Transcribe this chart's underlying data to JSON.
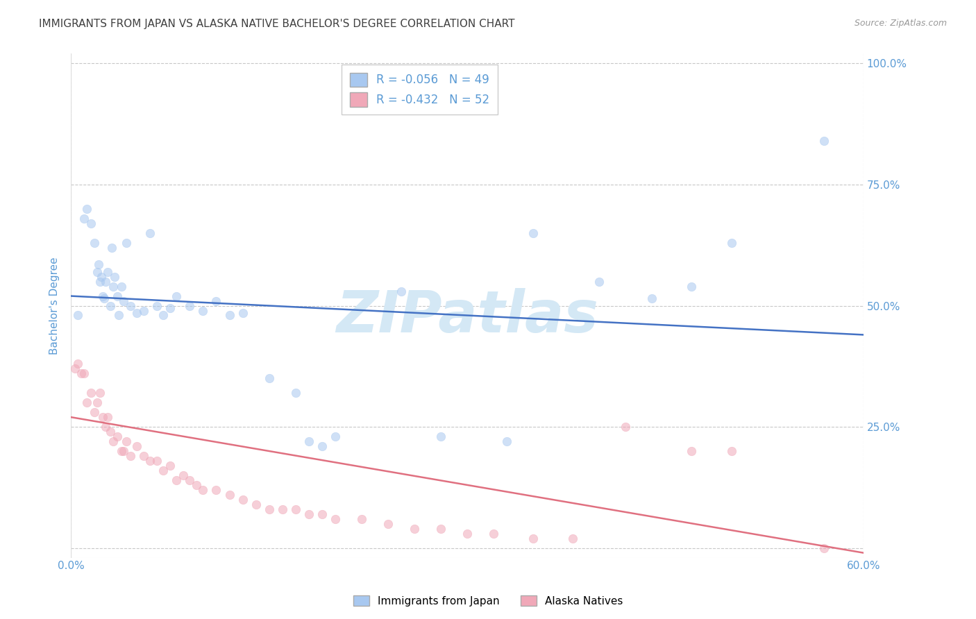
{
  "title": "IMMIGRANTS FROM JAPAN VS ALASKA NATIVE BACHELOR'S DEGREE CORRELATION CHART",
  "source": "Source: ZipAtlas.com",
  "ylabel": "Bachelor's Degree",
  "watermark": "ZIPatlas",
  "legend_entries": [
    {
      "label": "R = -0.056   N = 49",
      "color": "#a8c8f0"
    },
    {
      "label": "R = -0.432   N = 52",
      "color": "#f0a8b8"
    }
  ],
  "legend_series": [
    {
      "name": "Immigrants from Japan",
      "color": "#a8c8f0"
    },
    {
      "name": "Alaska Natives",
      "color": "#f0a8b8"
    }
  ],
  "blue_scatter_x": [
    0.5,
    1.0,
    1.2,
    1.5,
    1.8,
    2.0,
    2.1,
    2.2,
    2.3,
    2.4,
    2.5,
    2.6,
    2.8,
    3.0,
    3.1,
    3.2,
    3.3,
    3.5,
    3.6,
    3.8,
    4.0,
    4.2,
    4.5,
    5.0,
    5.5,
    6.0,
    6.5,
    7.0,
    7.5,
    8.0,
    9.0,
    10.0,
    11.0,
    12.0,
    13.0,
    15.0,
    17.0,
    18.0,
    19.0,
    20.0,
    25.0,
    28.0,
    33.0,
    35.0,
    40.0,
    44.0,
    47.0,
    50.0,
    57.0
  ],
  "blue_scatter_y": [
    48.0,
    68.0,
    70.0,
    67.0,
    63.0,
    57.0,
    58.5,
    55.0,
    56.0,
    52.0,
    51.5,
    55.0,
    57.0,
    50.0,
    62.0,
    54.0,
    56.0,
    52.0,
    48.0,
    54.0,
    51.0,
    63.0,
    50.0,
    48.5,
    49.0,
    65.0,
    50.0,
    48.0,
    49.5,
    52.0,
    50.0,
    49.0,
    51.0,
    48.0,
    48.5,
    35.0,
    32.0,
    22.0,
    21.0,
    23.0,
    53.0,
    23.0,
    22.0,
    65.0,
    55.0,
    51.5,
    54.0,
    63.0,
    84.0
  ],
  "pink_scatter_x": [
    0.3,
    0.5,
    0.8,
    1.0,
    1.2,
    1.5,
    1.8,
    2.0,
    2.2,
    2.4,
    2.6,
    2.8,
    3.0,
    3.2,
    3.5,
    3.8,
    4.0,
    4.2,
    4.5,
    5.0,
    5.5,
    6.0,
    6.5,
    7.0,
    7.5,
    8.0,
    8.5,
    9.0,
    9.5,
    10.0,
    11.0,
    12.0,
    13.0,
    14.0,
    15.0,
    16.0,
    17.0,
    18.0,
    19.0,
    20.0,
    22.0,
    24.0,
    26.0,
    28.0,
    30.0,
    32.0,
    35.0,
    38.0,
    42.0,
    47.0,
    50.0,
    57.0
  ],
  "pink_scatter_y": [
    37.0,
    38.0,
    36.0,
    36.0,
    30.0,
    32.0,
    28.0,
    30.0,
    32.0,
    27.0,
    25.0,
    27.0,
    24.0,
    22.0,
    23.0,
    20.0,
    20.0,
    22.0,
    19.0,
    21.0,
    19.0,
    18.0,
    18.0,
    16.0,
    17.0,
    14.0,
    15.0,
    14.0,
    13.0,
    12.0,
    12.0,
    11.0,
    10.0,
    9.0,
    8.0,
    8.0,
    8.0,
    7.0,
    7.0,
    6.0,
    6.0,
    5.0,
    4.0,
    4.0,
    3.0,
    3.0,
    2.0,
    2.0,
    25.0,
    20.0,
    20.0,
    0.0
  ],
  "blue_line": {
    "x_start": 0.0,
    "x_end": 60.0,
    "y_start": 52.0,
    "y_end": 44.0
  },
  "pink_line": {
    "x_start": 0.0,
    "x_end": 60.0,
    "y_start": 27.0,
    "y_end": -1.0
  },
  "blue_line_color": "#4472c4",
  "pink_line_color": "#e07080",
  "blue_dot_color": "#a8c8f0",
  "pink_dot_color": "#f0a8b8",
  "axis_color": "#5b9bd5",
  "grid_color": "#c8c8c8",
  "title_color": "#404040",
  "title_fontsize": 11,
  "source_fontsize": 9,
  "watermark_color": "#d4e8f5",
  "watermark_fontsize": 60,
  "xlim": [
    0.0,
    60.0
  ],
  "ylim": [
    -2.0,
    102.0
  ],
  "yticks": [
    0.0,
    25.0,
    50.0,
    75.0,
    100.0
  ],
  "ytick_labels": [
    "",
    "25.0%",
    "50.0%",
    "75.0%",
    "100.0%"
  ],
  "xtick_positions": [
    0.0,
    60.0
  ],
  "xtick_labels": [
    "0.0%",
    "60.0%"
  ],
  "dot_size": 80,
  "dot_alpha": 0.55,
  "dot_edgewidth": 0.5
}
